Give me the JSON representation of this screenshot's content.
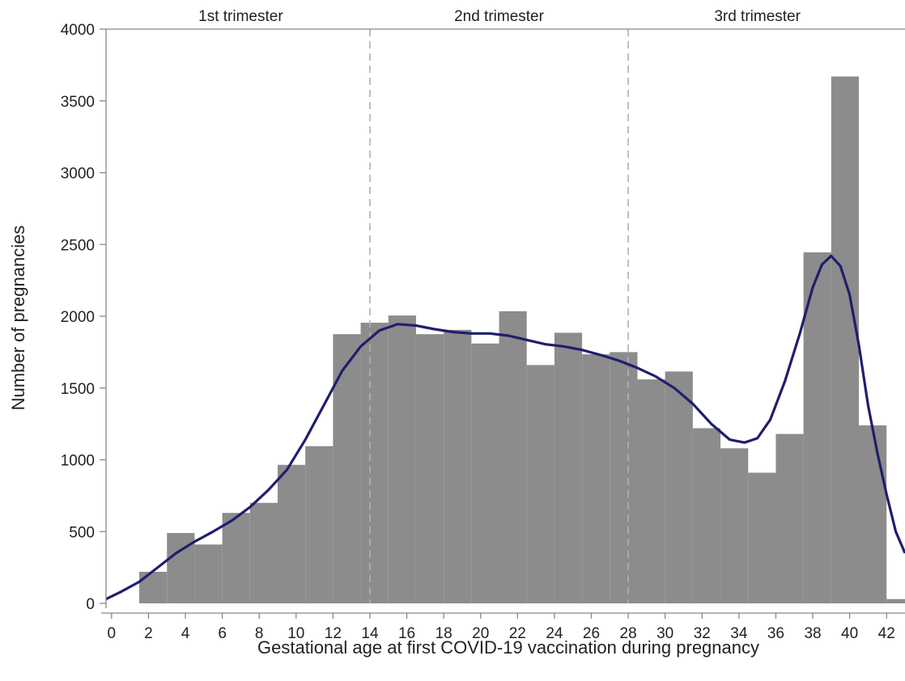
{
  "chart_data": {
    "type": "bar",
    "xlabel": "Gestational age at first COVID-19 vaccination during pregnancy",
    "ylabel": "Number of pregnancies",
    "xlim": [
      -0.3,
      43
    ],
    "ylim": [
      0,
      4000
    ],
    "xticks": [
      0,
      2,
      4,
      6,
      8,
      10,
      12,
      14,
      16,
      18,
      20,
      22,
      24,
      26,
      28,
      30,
      32,
      34,
      36,
      38,
      40,
      42
    ],
    "yticks": [
      0,
      500,
      1000,
      1500,
      2000,
      2500,
      3000,
      3500,
      4000
    ],
    "bin_width": 1.5,
    "bins": [
      {
        "x0": 1.5,
        "value": 220
      },
      {
        "x0": 3.0,
        "value": 490
      },
      {
        "x0": 4.5,
        "value": 410
      },
      {
        "x0": 6.0,
        "value": 630
      },
      {
        "x0": 7.5,
        "value": 700
      },
      {
        "x0": 9.0,
        "value": 965
      },
      {
        "x0": 10.5,
        "value": 1095
      },
      {
        "x0": 12.0,
        "value": 1875
      },
      {
        "x0": 13.5,
        "value": 1955
      },
      {
        "x0": 15.0,
        "value": 2005
      },
      {
        "x0": 16.5,
        "value": 1875
      },
      {
        "x0": 18.0,
        "value": 1905
      },
      {
        "x0": 19.5,
        "value": 1810
      },
      {
        "x0": 21.0,
        "value": 2035
      },
      {
        "x0": 22.5,
        "value": 1660
      },
      {
        "x0": 24.0,
        "value": 1885
      },
      {
        "x0": 25.5,
        "value": 1735
      },
      {
        "x0": 27.0,
        "value": 1750
      },
      {
        "x0": 28.5,
        "value": 1560
      },
      {
        "x0": 30.0,
        "value": 1615
      },
      {
        "x0": 31.5,
        "value": 1220
      },
      {
        "x0": 33.0,
        "value": 1080
      },
      {
        "x0": 34.5,
        "value": 910
      },
      {
        "x0": 36.0,
        "value": 1180
      },
      {
        "x0": 37.5,
        "value": 2445
      },
      {
        "x0": 39.0,
        "value": 3670
      },
      {
        "x0": 40.5,
        "value": 1240
      },
      {
        "x0": 42.0,
        "value": 30
      }
    ],
    "density_curve": [
      [
        -0.3,
        30
      ],
      [
        0.5,
        80
      ],
      [
        1.5,
        150
      ],
      [
        2.5,
        250
      ],
      [
        3.5,
        350
      ],
      [
        4.5,
        430
      ],
      [
        5.5,
        500
      ],
      [
        6.5,
        575
      ],
      [
        7.5,
        670
      ],
      [
        8.5,
        790
      ],
      [
        9.5,
        930
      ],
      [
        10.5,
        1140
      ],
      [
        11.5,
        1380
      ],
      [
        12.5,
        1620
      ],
      [
        13.5,
        1790
      ],
      [
        14.5,
        1900
      ],
      [
        15.5,
        1945
      ],
      [
        16.5,
        1935
      ],
      [
        17.5,
        1910
      ],
      [
        18.5,
        1890
      ],
      [
        19.5,
        1880
      ],
      [
        20.5,
        1880
      ],
      [
        21.5,
        1865
      ],
      [
        22.5,
        1835
      ],
      [
        23.5,
        1805
      ],
      [
        24.5,
        1790
      ],
      [
        25.5,
        1765
      ],
      [
        26.5,
        1730
      ],
      [
        27.5,
        1690
      ],
      [
        28.5,
        1640
      ],
      [
        29.5,
        1580
      ],
      [
        30.5,
        1500
      ],
      [
        31.5,
        1390
      ],
      [
        32.5,
        1250
      ],
      [
        33.5,
        1140
      ],
      [
        34.3,
        1120
      ],
      [
        35.0,
        1150
      ],
      [
        35.7,
        1280
      ],
      [
        36.5,
        1550
      ],
      [
        37.3,
        1880
      ],
      [
        38.0,
        2200
      ],
      [
        38.5,
        2360
      ],
      [
        39.0,
        2420
      ],
      [
        39.5,
        2350
      ],
      [
        40.0,
        2150
      ],
      [
        40.5,
        1800
      ],
      [
        41.0,
        1380
      ],
      [
        41.5,
        1050
      ],
      [
        42.0,
        760
      ],
      [
        42.5,
        500
      ],
      [
        43.0,
        350
      ]
    ],
    "reference_lines": [
      14,
      28
    ],
    "trimester_labels": [
      {
        "label": "1st trimester",
        "x": 7
      },
      {
        "label": "2nd trimester",
        "x": 21
      },
      {
        "label": "3rd trimester",
        "x": 35
      }
    ],
    "legend": "none",
    "grid": false
  },
  "colors": {
    "bar": "#8c8c8c",
    "curve": "#1f1e6e",
    "reference_line": "#b0b0b0",
    "axis": "#888888"
  }
}
